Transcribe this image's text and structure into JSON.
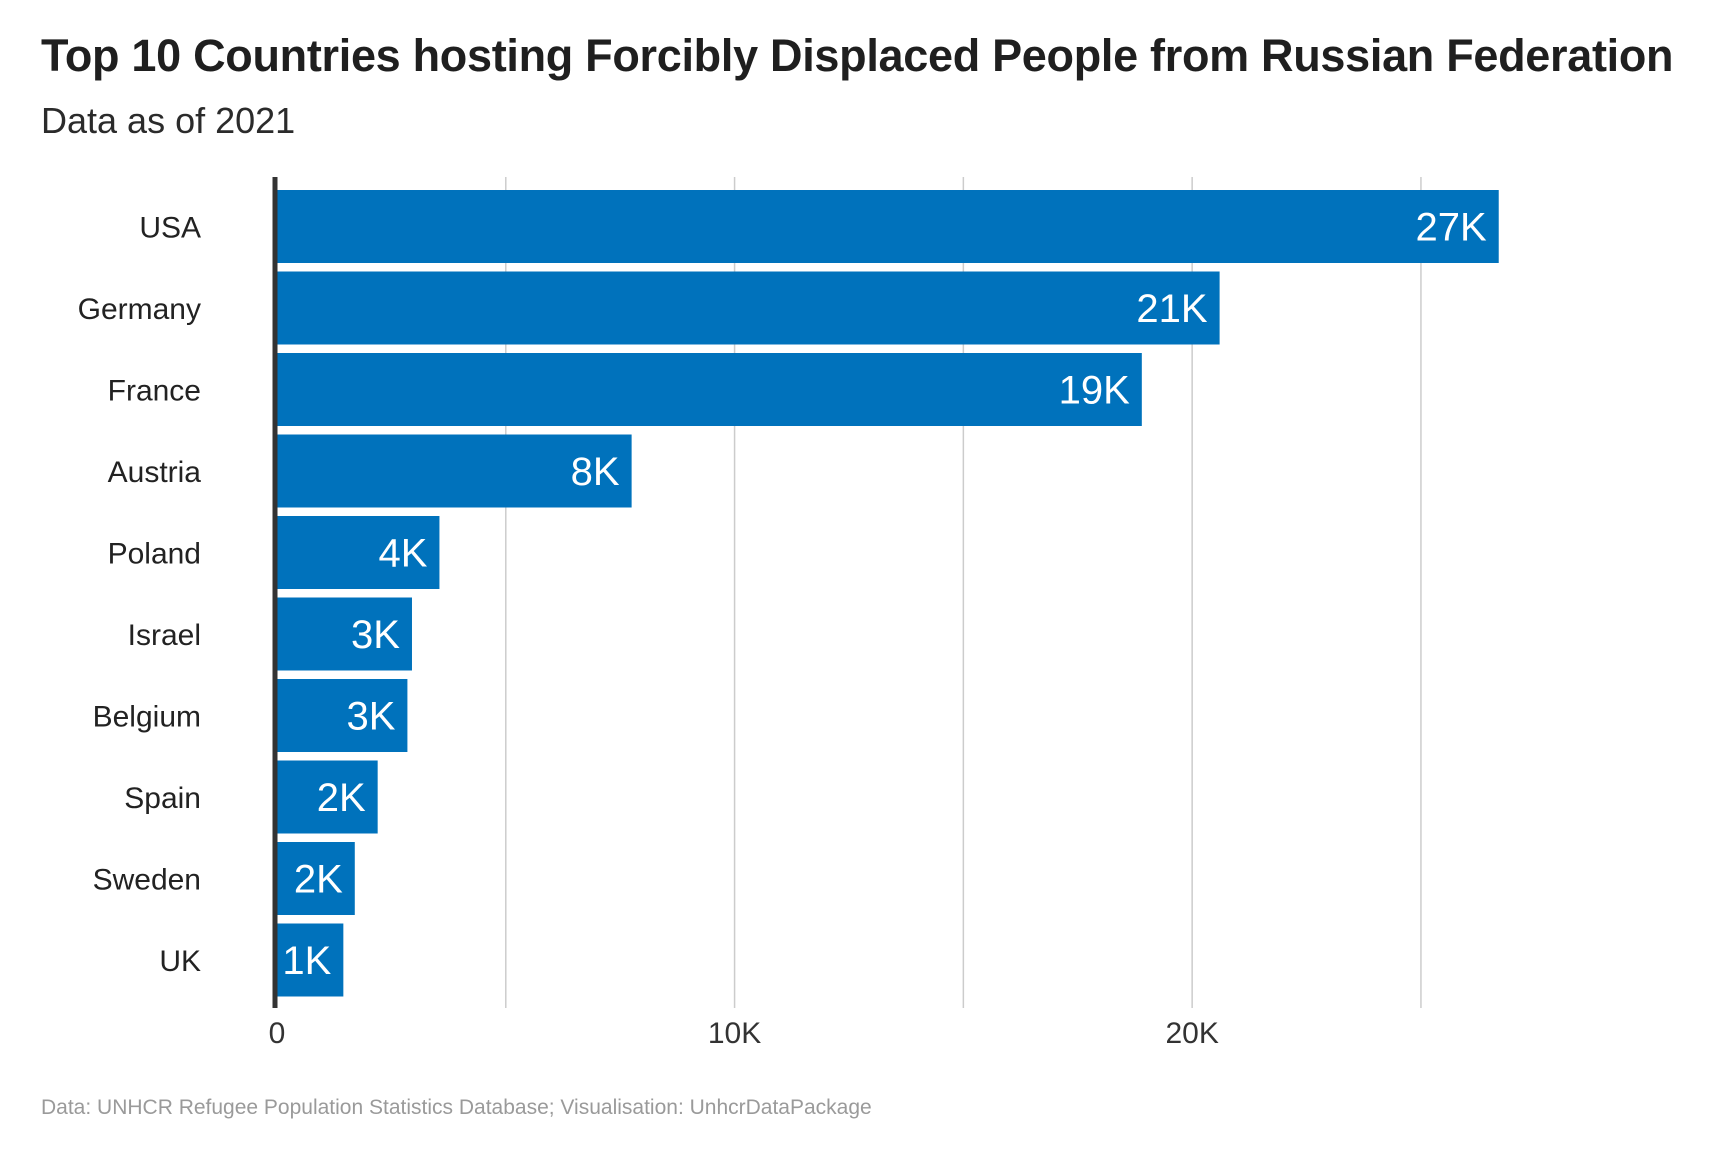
{
  "title": "Top 10 Countries hosting Forcibly Displaced People from Russian Federation",
  "subtitle": "Data as of 2021",
  "caption": "Data: UNHCR Refugee Population Statistics Database; Visualisation: UnhcrDataPackage",
  "colors": {
    "bar": "#0072BC",
    "grid": "#cccccc",
    "axis": "#333333",
    "bar_label": "#ffffff"
  },
  "chart_data": {
    "type": "bar",
    "orientation": "horizontal",
    "categories": [
      "USA",
      "Germany",
      "France",
      "Austria",
      "Poland",
      "Israel",
      "Belgium",
      "Spain",
      "Sweden",
      "UK"
    ],
    "values": [
      26700,
      20600,
      18900,
      7750,
      3550,
      2950,
      2850,
      2200,
      1700,
      1450
    ],
    "value_labels": [
      "27K",
      "21K",
      "19K",
      "8K",
      "4K",
      "3K",
      "3K",
      "2K",
      "2K",
      "1K"
    ],
    "x_ticks": [
      0,
      10000,
      20000
    ],
    "x_tick_labels": [
      "0",
      "10K",
      "20K"
    ],
    "xlim": [
      0,
      27000
    ],
    "grid": true
  }
}
